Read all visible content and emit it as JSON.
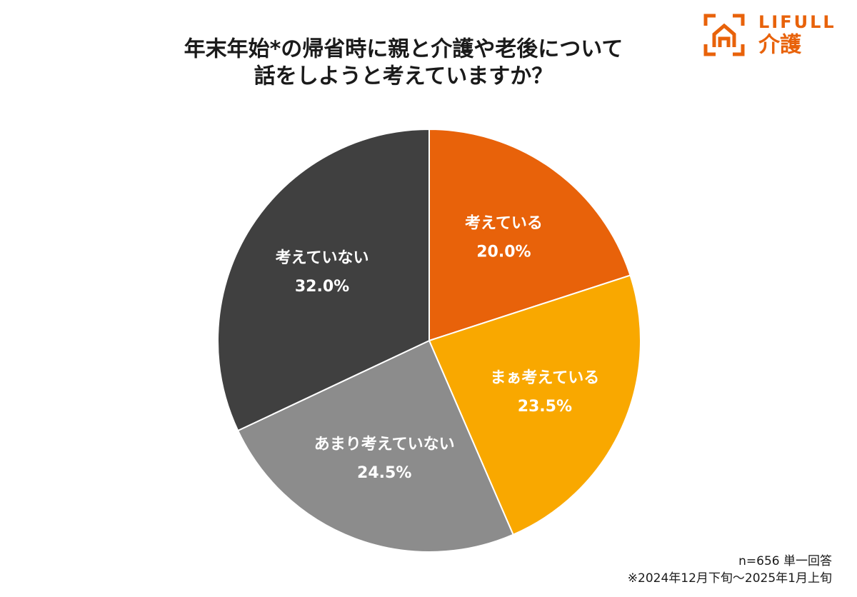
{
  "chart_data": {
    "type": "pie",
    "title": [
      "年末年始*の帰省時に親と介護や老後について",
      "話をしようと考えていますか？"
    ],
    "categories": [
      "考えている",
      "まぁ考えている",
      "あまり考えていない",
      "考えていない"
    ],
    "values": [
      20.0,
      23.5,
      24.5,
      32.0
    ],
    "value_labels": [
      "20.0%",
      "23.5%",
      "24.5%",
      "32.0%"
    ],
    "colors": [
      "#e8620a",
      "#f9a800",
      "#8c8c8c",
      "#404040"
    ],
    "notes": [
      "n=656 単一回答",
      "※2024年12月下旬～2025年1月上旬"
    ]
  },
  "logo": {
    "brand": "LIFULL",
    "service": "介護"
  }
}
